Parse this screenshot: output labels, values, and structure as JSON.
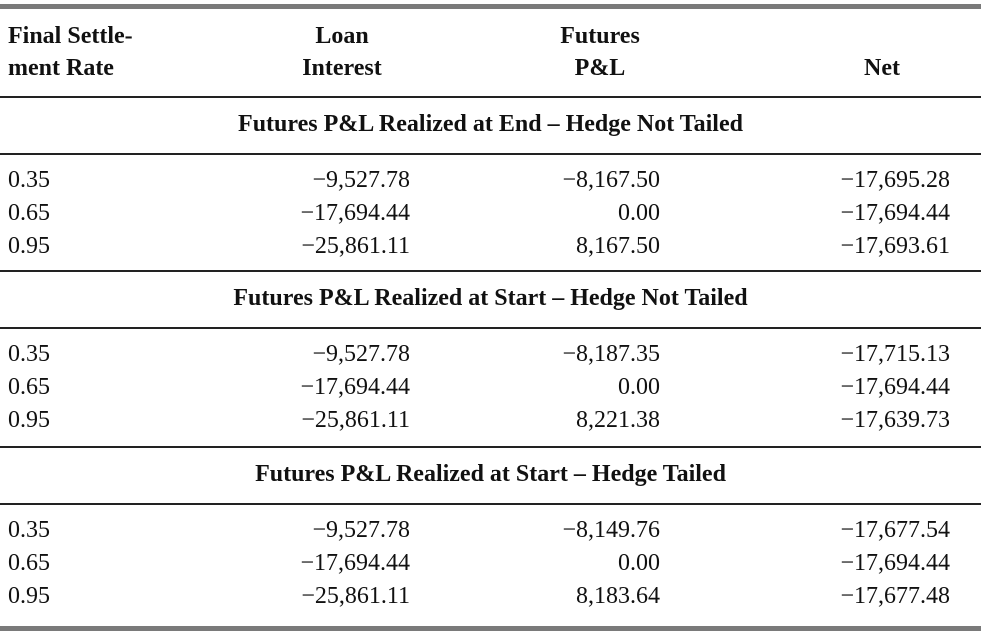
{
  "table": {
    "headers": {
      "rate": "Final Settle-\nment Rate",
      "loan": "Loan\nInterest",
      "futures": "Futures\nP&L",
      "net": "Net"
    },
    "sections": [
      {
        "title": "Futures P&L Realized at End – Hedge Not Tailed",
        "rows": [
          [
            "0.35",
            "−9,527.78",
            "−8,167.50",
            "−17,695.28"
          ],
          [
            "0.65",
            "−17,694.44",
            "0.00",
            "−17,694.44"
          ],
          [
            "0.95",
            "−25,861.11",
            "8,167.50",
            "−17,693.61"
          ]
        ]
      },
      {
        "title": "Futures P&L Realized at Start – Hedge Not Tailed",
        "rows": [
          [
            "0.35",
            "−9,527.78",
            "−8,187.35",
            "−17,715.13"
          ],
          [
            "0.65",
            "−17,694.44",
            "0.00",
            "−17,694.44"
          ],
          [
            "0.95",
            "−25,861.11",
            "8,221.38",
            "−17,639.73"
          ]
        ]
      },
      {
        "title": "Futures P&L Realized at Start – Hedge Tailed",
        "rows": [
          [
            "0.35",
            "−9,527.78",
            "−8,149.76",
            "−17,677.54"
          ],
          [
            "0.65",
            "−17,694.44",
            "0.00",
            "−17,694.44"
          ],
          [
            "0.95",
            "−25,861.11",
            "8,183.64",
            "−17,677.48"
          ]
        ]
      }
    ]
  }
}
